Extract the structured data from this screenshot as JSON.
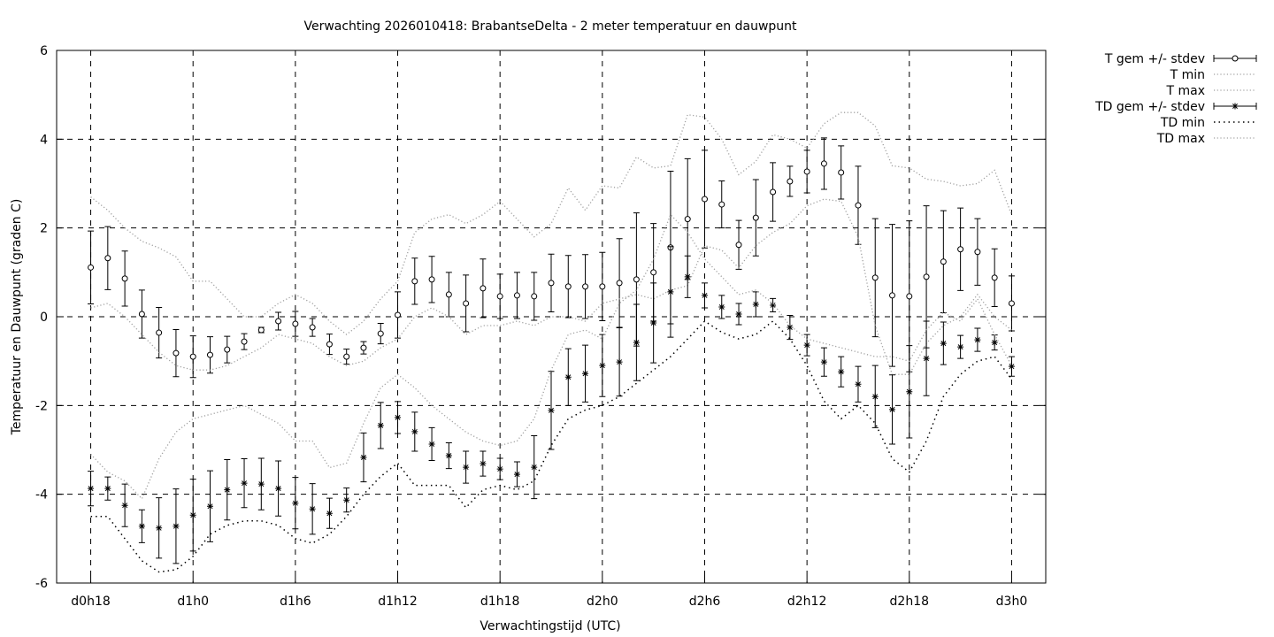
{
  "chart_data": {
    "type": "line",
    "title": "Verwachting 2026010418: BrabantseDelta - 2 meter temperatuur en dauwpunt",
    "xlabel": "Verwachtingstijd (UTC)",
    "ylabel": "Temperatuur en Dauwpunt (graden C)",
    "xlim": [
      "d0h16",
      "d3h2"
    ],
    "ylim": [
      -6,
      6
    ],
    "yticks": [
      -6,
      -4,
      -2,
      0,
      2,
      4,
      6
    ],
    "xticks": [
      "d0h18",
      "d1h0",
      "d1h6",
      "d1h12",
      "d1h18",
      "d2h0",
      "d2h6",
      "d2h12",
      "d2h18",
      "d3h0"
    ],
    "grid": true,
    "legend_position": "outside-right",
    "x": [
      "d0h18",
      "d0h19",
      "d0h20",
      "d0h21",
      "d0h22",
      "d0h23",
      "d1h0",
      "d1h1",
      "d1h2",
      "d1h3",
      "d1h4",
      "d1h5",
      "d1h6",
      "d1h7",
      "d1h8",
      "d1h9",
      "d1h10",
      "d1h11",
      "d1h12",
      "d1h13",
      "d1h14",
      "d1h15",
      "d1h16",
      "d1h17",
      "d1h18",
      "d1h19",
      "d1h20",
      "d1h21",
      "d1h22",
      "d1h23",
      "d2h0",
      "d2h1",
      "d2h2",
      "d2h3",
      "d2h4",
      "d2h5",
      "d2h6",
      "d2h7",
      "d2h8",
      "d2h9",
      "d2h10",
      "d2h11",
      "d2h12",
      "d2h13",
      "d2h14",
      "d2h15",
      "d2h16",
      "d2h17",
      "d2h18",
      "d2h19",
      "d2h20",
      "d2h21",
      "d2h22",
      "d2h23",
      "d3h0"
    ],
    "series": [
      {
        "name": "T gem +/- stdev",
        "style": "errorbars-circle",
        "values": [
          1.11,
          1.32,
          0.86,
          0.06,
          -0.36,
          -0.82,
          -0.9,
          -0.86,
          -0.74,
          -0.56,
          -0.3,
          -0.1,
          -0.16,
          -0.24,
          -0.62,
          -0.9,
          -0.7,
          -0.38,
          0.04,
          0.8,
          0.84,
          0.5,
          0.3,
          0.64,
          0.46,
          0.48,
          0.46,
          0.76,
          0.68,
          0.68,
          0.68,
          0.76,
          0.84,
          1.0,
          1.56,
          2.2,
          2.65,
          2.53,
          1.62,
          2.23,
          2.81,
          3.05,
          3.27,
          3.45,
          3.25,
          2.51,
          0.88,
          0.48,
          0.46,
          0.9,
          1.24,
          1.52,
          1.46,
          0.88,
          0.3
        ],
        "stdev": [
          0.82,
          0.71,
          0.62,
          0.54,
          0.57,
          0.53,
          0.47,
          0.41,
          0.3,
          0.18,
          0.06,
          0.2,
          0.28,
          0.2,
          0.23,
          0.17,
          0.14,
          0.23,
          0.52,
          0.52,
          0.52,
          0.5,
          0.64,
          0.66,
          0.5,
          0.52,
          0.54,
          0.65,
          0.7,
          0.72,
          0.77,
          1.0,
          1.5,
          1.1,
          1.72,
          1.36,
          1.1,
          0.53,
          0.55,
          0.86,
          0.66,
          0.34,
          0.48,
          0.58,
          0.6,
          0.88,
          1.33,
          1.6,
          1.7,
          1.6,
          1.15,
          0.93,
          0.75,
          0.65,
          0.62
        ]
      },
      {
        "name": "T min",
        "style": "dotted-gray",
        "values": [
          0.2,
          0.3,
          0.0,
          -0.4,
          -0.8,
          -1.1,
          -1.2,
          -1.2,
          -1.1,
          -0.9,
          -0.7,
          -0.4,
          -0.5,
          -0.6,
          -0.9,
          -1.1,
          -1.0,
          -0.7,
          -0.5,
          0.0,
          0.2,
          0.0,
          -0.4,
          -0.2,
          -0.2,
          -0.1,
          -0.2,
          0.0,
          0.0,
          -0.1,
          0.3,
          0.4,
          0.5,
          0.4,
          0.6,
          0.7,
          1.6,
          1.5,
          1.1,
          1.6,
          1.9,
          2.1,
          2.5,
          2.65,
          2.6,
          1.8,
          -0.2,
          -1.3,
          -1.3,
          -0.6,
          -0.2,
          0.0,
          0.5,
          0.0,
          -0.3
        ]
      },
      {
        "name": "T max",
        "style": "dotted-gray",
        "values": [
          2.7,
          2.4,
          2.0,
          1.7,
          1.55,
          1.35,
          0.8,
          0.8,
          0.4,
          0.0,
          0.0,
          0.3,
          0.5,
          0.3,
          -0.1,
          -0.4,
          -0.1,
          0.4,
          0.8,
          1.9,
          2.2,
          2.3,
          2.1,
          2.3,
          2.6,
          2.2,
          1.8,
          2.1,
          2.9,
          2.4,
          2.95,
          2.9,
          3.6,
          3.35,
          3.4,
          4.55,
          4.5,
          4.0,
          3.2,
          3.5,
          4.1,
          4.0,
          3.8,
          4.35,
          4.6,
          4.6,
          4.3,
          3.4,
          3.35,
          3.1,
          3.05,
          2.95,
          3.0,
          3.3,
          2.3
        ]
      },
      {
        "name": "TD gem +/- stdev",
        "style": "errorbars-star",
        "values": [
          -3.87,
          -3.87,
          -4.25,
          -4.72,
          -4.76,
          -4.72,
          -4.47,
          -4.27,
          -3.9,
          -3.75,
          -3.77,
          -3.87,
          -4.2,
          -4.33,
          -4.43,
          -4.13,
          -3.17,
          -2.45,
          -2.27,
          -2.59,
          -2.87,
          -3.13,
          -3.39,
          -3.31,
          -3.43,
          -3.55,
          -3.39,
          -2.11,
          -1.36,
          -1.28,
          -1.1,
          -1.02,
          -0.58,
          -0.14,
          0.56,
          0.9,
          0.48,
          0.22,
          0.06,
          0.28,
          0.26,
          -0.24,
          -0.64,
          -1.02,
          -1.24,
          -1.52,
          -1.8,
          -2.09,
          -1.69,
          -0.94,
          -0.6,
          -0.68,
          -0.52,
          -0.58,
          -1.12
        ],
        "stdev": [
          0.39,
          0.26,
          0.48,
          0.37,
          0.68,
          0.84,
          0.81,
          0.8,
          0.68,
          0.55,
          0.58,
          0.62,
          0.58,
          0.57,
          0.34,
          0.27,
          0.55,
          0.52,
          0.36,
          0.44,
          0.37,
          0.29,
          0.36,
          0.28,
          0.24,
          0.28,
          0.71,
          0.88,
          0.64,
          0.64,
          0.7,
          0.77,
          0.86,
          0.9,
          1.02,
          0.47,
          0.28,
          0.26,
          0.24,
          0.28,
          0.15,
          0.27,
          0.24,
          0.32,
          0.34,
          0.4,
          0.7,
          0.78,
          1.04,
          0.84,
          0.48,
          0.26,
          0.26,
          0.17,
          0.22
        ]
      },
      {
        "name": "TD min",
        "style": "dotted-black",
        "values": [
          -4.5,
          -4.5,
          -5.0,
          -5.5,
          -5.75,
          -5.7,
          -5.4,
          -4.9,
          -4.7,
          -4.6,
          -4.6,
          -4.7,
          -5.0,
          -5.1,
          -4.9,
          -4.5,
          -4.0,
          -3.6,
          -3.3,
          -3.8,
          -3.8,
          -3.8,
          -4.3,
          -3.9,
          -3.8,
          -3.9,
          -3.7,
          -2.9,
          -2.3,
          -2.1,
          -2.0,
          -1.8,
          -1.5,
          -1.2,
          -0.9,
          -0.5,
          -0.1,
          -0.35,
          -0.5,
          -0.4,
          -0.1,
          -0.5,
          -1.1,
          -1.9,
          -2.3,
          -2.0,
          -2.4,
          -3.2,
          -3.5,
          -2.8,
          -1.8,
          -1.3,
          -1.0,
          -0.9,
          -1.4
        ]
      },
      {
        "name": "TD max",
        "style": "dotted-gray",
        "values": [
          -3.1,
          -3.5,
          -3.7,
          -4.1,
          -3.2,
          -2.6,
          -2.3,
          -2.2,
          -2.1,
          -2.0,
          -2.2,
          -2.4,
          -2.8,
          -2.8,
          -3.4,
          -3.3,
          -2.4,
          -1.6,
          -1.3,
          -1.6,
          -2.0,
          -2.3,
          -2.6,
          -2.8,
          -2.9,
          -2.8,
          -2.3,
          -1.2,
          -0.4,
          -0.3,
          -0.5,
          0.3,
          0.6,
          1.3,
          2.3,
          1.9,
          1.3,
          0.9,
          0.5,
          0.6,
          0.3,
          -0.2,
          -0.5,
          -0.6,
          -0.7,
          -0.8,
          -0.9,
          -0.9,
          -1.0,
          -0.3,
          0.1,
          -0.1,
          0.4,
          -0.4,
          -1.1
        ]
      }
    ],
    "colors": {
      "axis": "#000000",
      "grid": "#000000",
      "dotted_gray": "#a0a0a0",
      "dotted_black": "#000000"
    }
  }
}
